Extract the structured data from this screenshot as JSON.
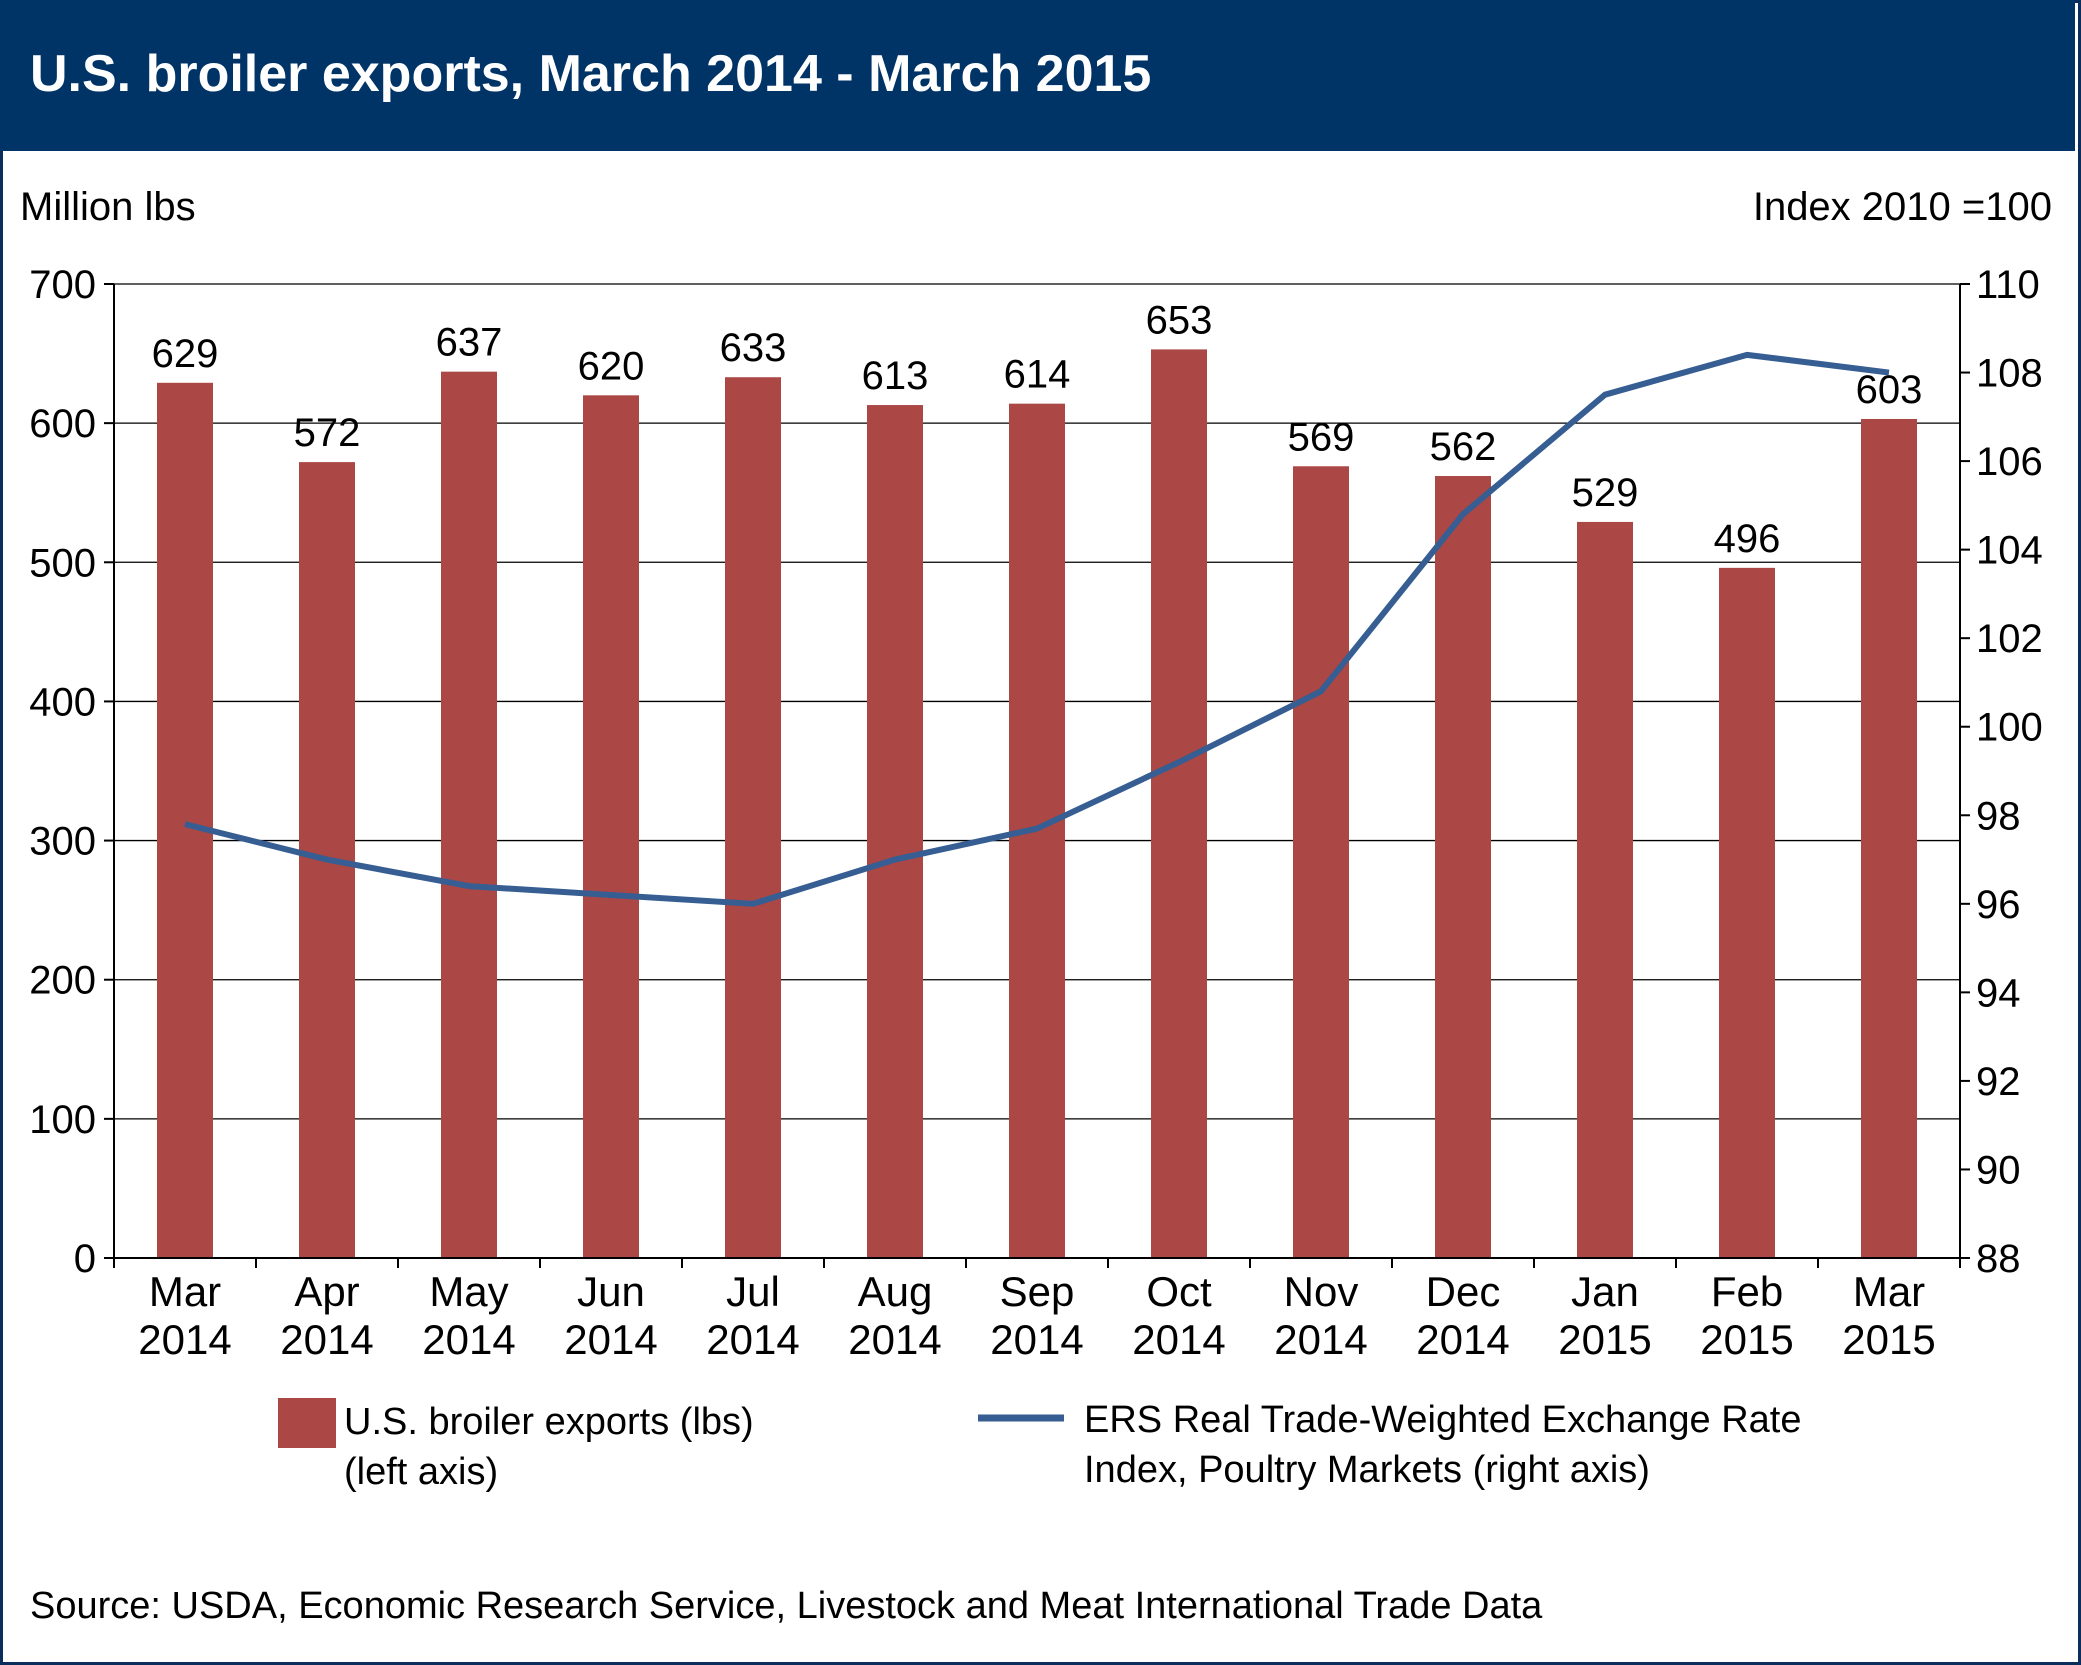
{
  "title": "U.S. broiler exports, March 2014 - March 2015",
  "source": "Source: USDA, Economic Research Service, Livestock and Meat International Trade Data",
  "colors": {
    "header": "#003366",
    "bars": "#ab4744",
    "line": "#365e93"
  },
  "chart_data": {
    "type": "bar",
    "categories": [
      [
        "Mar",
        "2014"
      ],
      [
        "Apr",
        "2014"
      ],
      [
        "May",
        "2014"
      ],
      [
        "Jun",
        "2014"
      ],
      [
        "Jul",
        "2014"
      ],
      [
        "Aug",
        "2014"
      ],
      [
        "Sep",
        "2014"
      ],
      [
        "Oct",
        "2014"
      ],
      [
        "Nov",
        "2014"
      ],
      [
        "Dec",
        "2014"
      ],
      [
        "Jan",
        "2015"
      ],
      [
        "Feb",
        "2015"
      ],
      [
        "Mar",
        "2015"
      ]
    ],
    "left_axis": {
      "label": "Million lbs",
      "ylim": [
        0,
        700
      ],
      "ticks": [
        0,
        100,
        200,
        300,
        400,
        500,
        600,
        700
      ]
    },
    "right_axis": {
      "label": "Index 2010 =100",
      "ylim": [
        88,
        110
      ],
      "ticks": [
        88,
        90,
        92,
        94,
        96,
        98,
        100,
        102,
        104,
        106,
        108,
        110
      ]
    },
    "grid": true,
    "legend_position": "bottom",
    "series": [
      {
        "name": "U.S. broiler exports (lbs)",
        "name_line2": "(left axis)",
        "type": "bar",
        "axis": "left",
        "values": [
          629,
          572,
          637,
          620,
          633,
          613,
          614,
          653,
          569,
          562,
          529,
          496,
          603
        ]
      },
      {
        "name": "ERS Real Trade-Weighted Exchange Rate",
        "name_line2": "Index, Poultry Markets (right axis)",
        "type": "line",
        "axis": "right",
        "values": [
          97.8,
          97.0,
          96.4,
          96.2,
          96.0,
          97.0,
          97.7,
          99.2,
          100.8,
          104.8,
          107.5,
          108.4,
          108.0
        ]
      }
    ]
  }
}
